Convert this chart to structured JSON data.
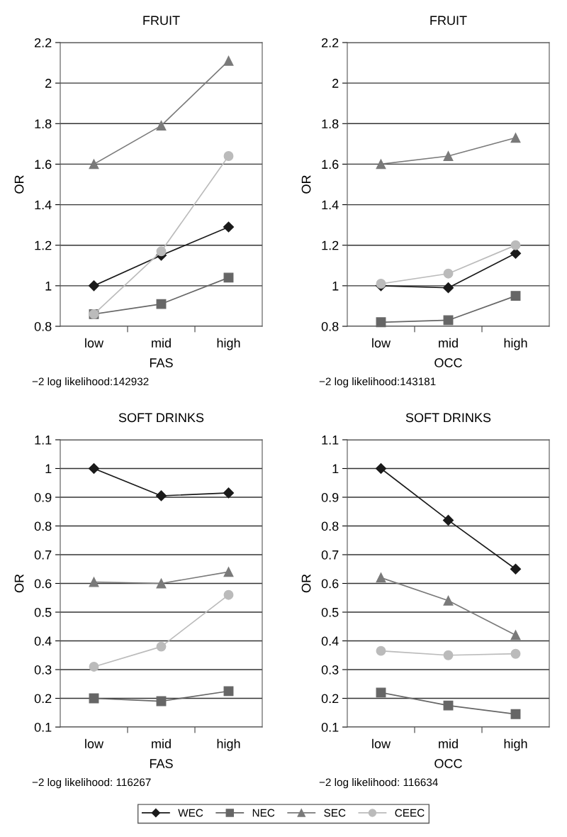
{
  "chart_data": [
    {
      "type": "line",
      "title": "FRUIT",
      "xlabel": "FAS",
      "ylabel": "OR",
      "categories": [
        "low",
        "mid",
        "high"
      ],
      "ylim": [
        0.8,
        2.2
      ],
      "yticks": [
        0.8,
        1,
        1.2,
        1.4,
        1.6,
        1.8,
        2,
        2.2
      ],
      "grid": "y",
      "legend": "bottom",
      "annotations": [
        "−2 log likelihood:142932"
      ],
      "series": [
        {
          "name": "WEC",
          "color": "#1a1a1a",
          "marker": "diamond",
          "values": [
            1.0,
            1.15,
            1.29
          ]
        },
        {
          "name": "NEC",
          "color": "#666666",
          "marker": "square",
          "values": [
            0.86,
            0.91,
            1.04
          ]
        },
        {
          "name": "SEC",
          "color": "#7a7a7a",
          "marker": "triangle",
          "values": [
            1.6,
            1.79,
            2.11
          ]
        },
        {
          "name": "CEEC",
          "color": "#bbbbbb",
          "marker": "circle",
          "values": [
            0.86,
            1.17,
            1.64
          ]
        }
      ]
    },
    {
      "type": "line",
      "title": "FRUIT",
      "xlabel": "OCC",
      "ylabel": "OR",
      "categories": [
        "low",
        "mid",
        "high"
      ],
      "ylim": [
        0.8,
        2.2
      ],
      "yticks": [
        0.8,
        1,
        1.2,
        1.4,
        1.6,
        1.8,
        2,
        2.2
      ],
      "grid": "y",
      "legend": "bottom",
      "annotations": [
        "−2 log likelihood:143181"
      ],
      "series": [
        {
          "name": "WEC",
          "color": "#1a1a1a",
          "marker": "diamond",
          "values": [
            1.0,
            0.99,
            1.16
          ]
        },
        {
          "name": "NEC",
          "color": "#666666",
          "marker": "square",
          "values": [
            0.82,
            0.83,
            0.95
          ]
        },
        {
          "name": "SEC",
          "color": "#7a7a7a",
          "marker": "triangle",
          "values": [
            1.6,
            1.64,
            1.73
          ]
        },
        {
          "name": "CEEC",
          "color": "#bbbbbb",
          "marker": "circle",
          "values": [
            1.01,
            1.06,
            1.2
          ]
        }
      ]
    },
    {
      "type": "line",
      "title": "SOFT DRINKS",
      "xlabel": "FAS",
      "ylabel": "OR",
      "categories": [
        "low",
        "mid",
        "high"
      ],
      "ylim": [
        0.1,
        1.1
      ],
      "yticks": [
        0.1,
        0.2,
        0.3,
        0.4,
        0.5,
        0.6,
        0.7,
        0.8,
        0.9,
        1,
        1.1
      ],
      "grid": "y",
      "legend": "bottom",
      "annotations": [
        "−2 log likelihood: 116267"
      ],
      "series": [
        {
          "name": "WEC",
          "color": "#1a1a1a",
          "marker": "diamond",
          "values": [
            1.0,
            0.905,
            0.915
          ]
        },
        {
          "name": "NEC",
          "color": "#666666",
          "marker": "square",
          "values": [
            0.2,
            0.19,
            0.225
          ]
        },
        {
          "name": "SEC",
          "color": "#7a7a7a",
          "marker": "triangle",
          "values": [
            0.605,
            0.6,
            0.64
          ]
        },
        {
          "name": "CEEC",
          "color": "#bbbbbb",
          "marker": "circle",
          "values": [
            0.31,
            0.38,
            0.56
          ]
        }
      ]
    },
    {
      "type": "line",
      "title": "SOFT DRINKS",
      "xlabel": "OCC",
      "ylabel": "OR",
      "categories": [
        "low",
        "mid",
        "high"
      ],
      "ylim": [
        0.1,
        1.1
      ],
      "yticks": [
        0.1,
        0.2,
        0.3,
        0.4,
        0.5,
        0.6,
        0.7,
        0.8,
        0.9,
        1,
        1.1
      ],
      "grid": "y",
      "legend": "bottom",
      "annotations": [
        "−2 log likelihood: 116634"
      ],
      "series": [
        {
          "name": "WEC",
          "color": "#1a1a1a",
          "marker": "diamond",
          "values": [
            1.0,
            0.82,
            0.65
          ]
        },
        {
          "name": "NEC",
          "color": "#666666",
          "marker": "square",
          "values": [
            0.22,
            0.175,
            0.145
          ]
        },
        {
          "name": "SEC",
          "color": "#7a7a7a",
          "marker": "triangle",
          "values": [
            0.62,
            0.54,
            0.42
          ]
        },
        {
          "name": "CEEC",
          "color": "#bbbbbb",
          "marker": "circle",
          "values": [
            0.365,
            0.35,
            0.355
          ]
        }
      ]
    }
  ]
}
